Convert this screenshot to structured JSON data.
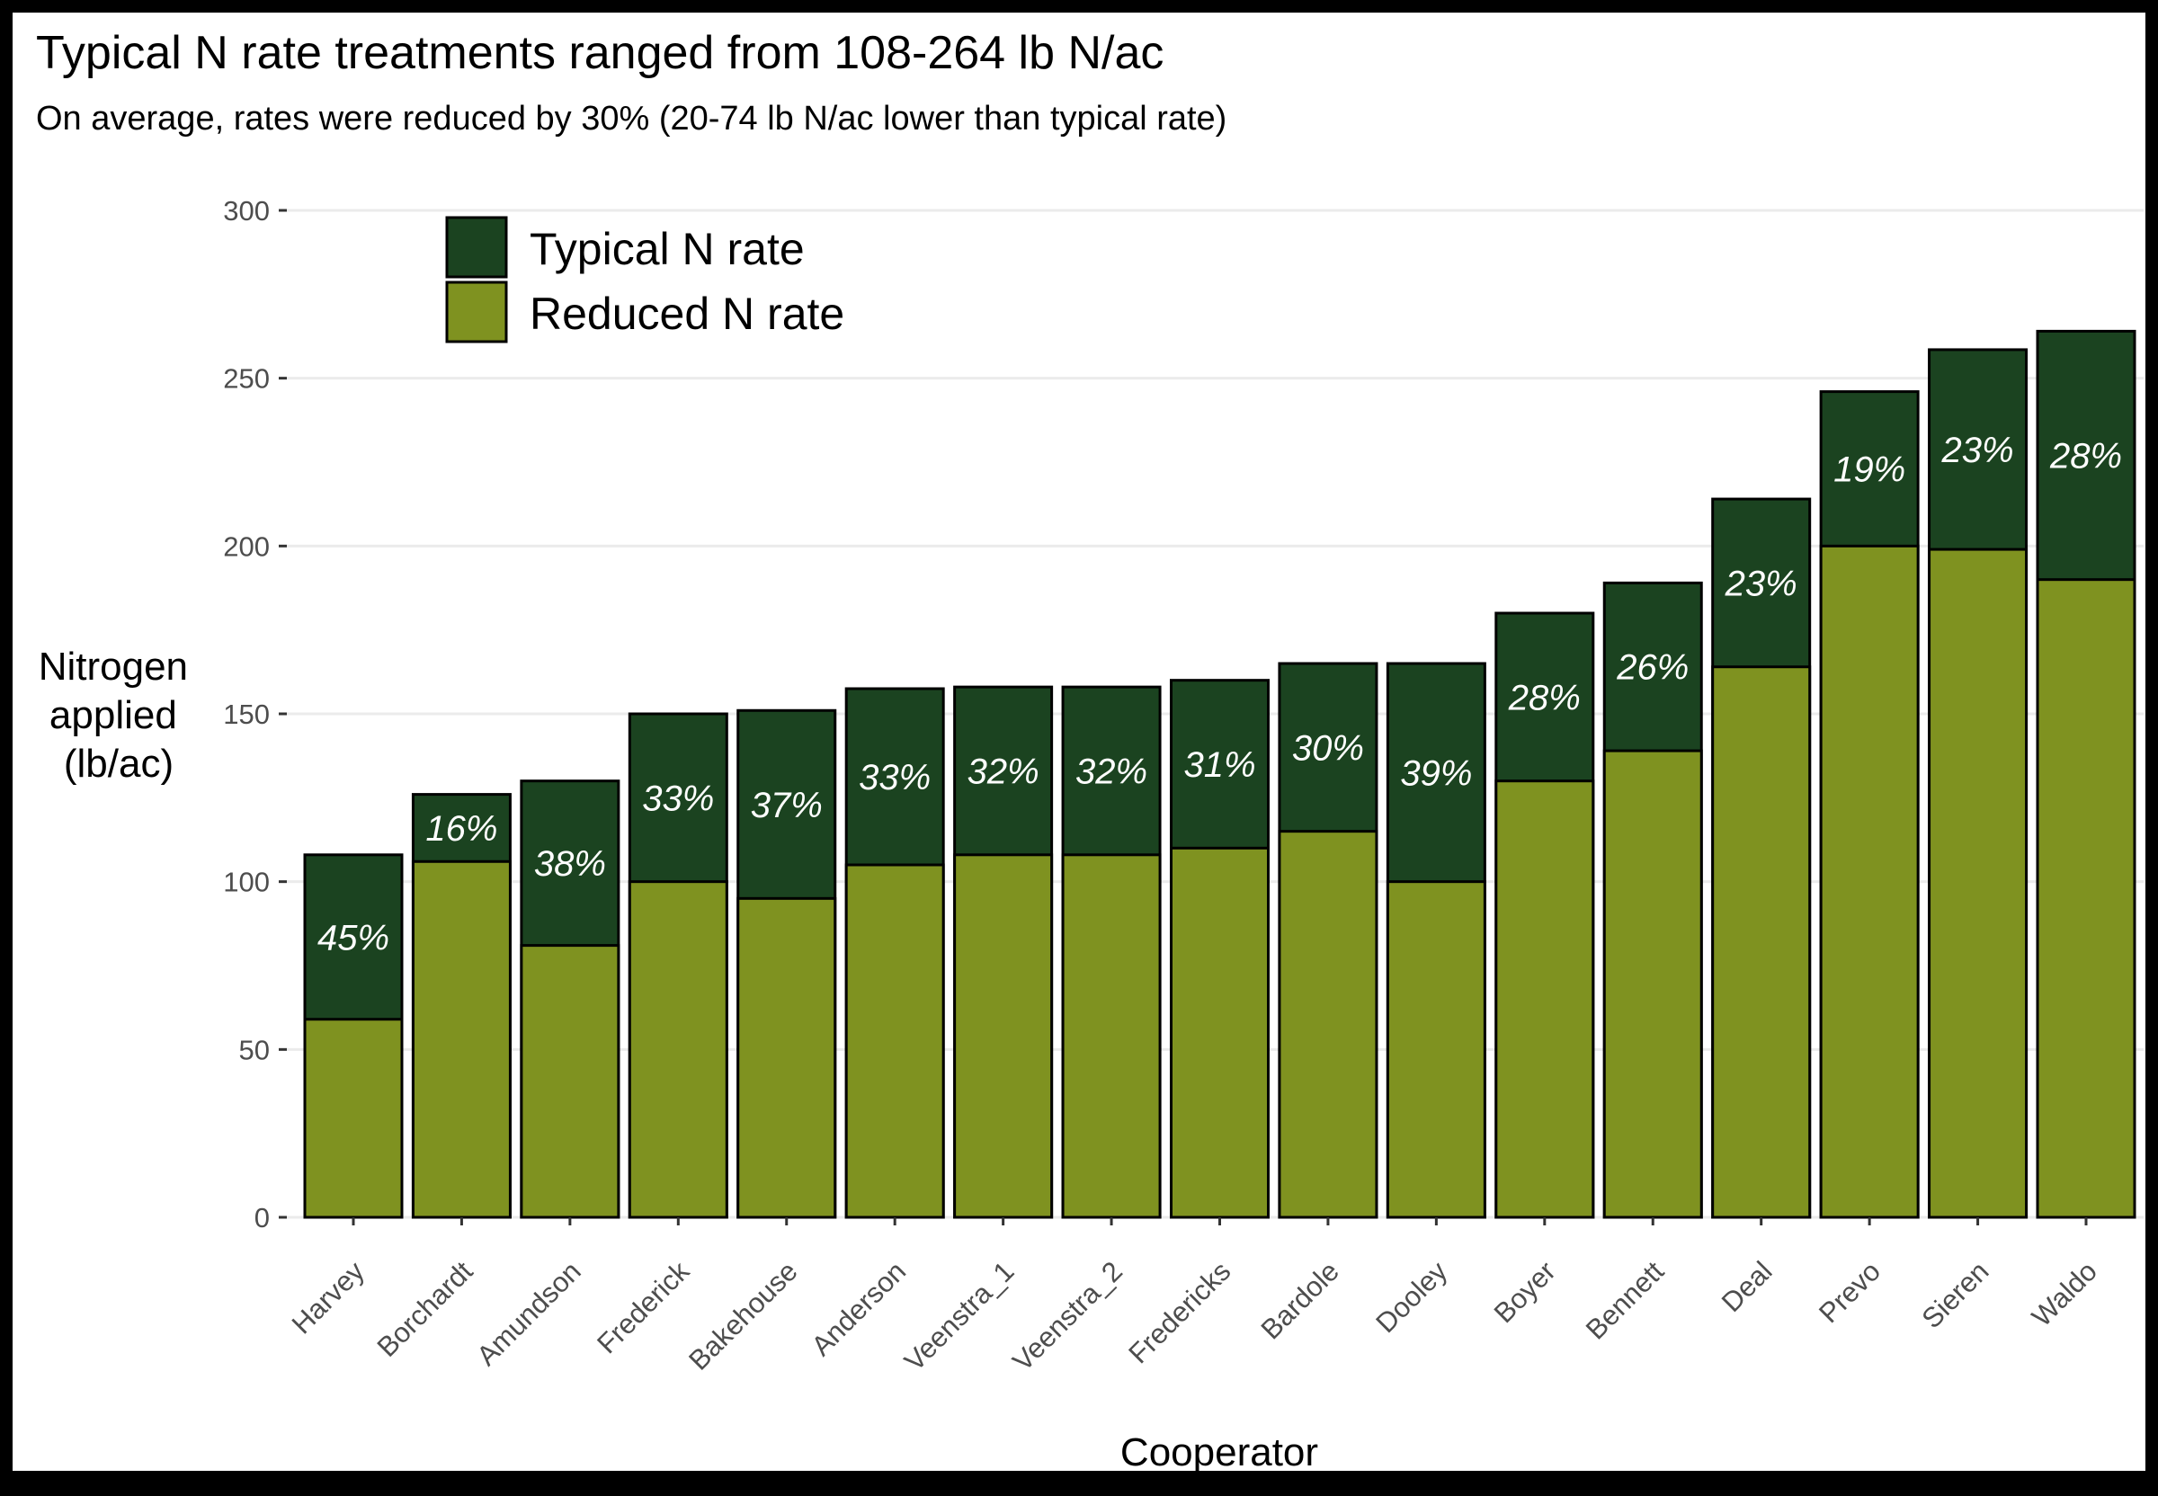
{
  "chart_data": {
    "type": "bar",
    "stacked": "overlay",
    "title": "Typical N rate treatments ranged from 108-264 lb N/ac",
    "subtitle": "On average, rates were reduced by 30% (20-74 lb N/ac lower than typical rate)",
    "xlabel": "Cooperator",
    "ylabel_lines": [
      "Nitrogen",
      "applied",
      "(lb/ac)"
    ],
    "ylim": [
      0,
      300
    ],
    "yticks": [
      0,
      50,
      100,
      150,
      200,
      250,
      300
    ],
    "grid": true,
    "legend_position": "top-left",
    "categories": [
      "Harvey",
      "Borchardt",
      "Amundson",
      "Frederick",
      "Bakehouse",
      "Anderson",
      "Veenstra_1",
      "Veenstra_2",
      "Fredericks",
      "Bardole",
      "Dooley",
      "Boyer",
      "Bennett",
      "Deal",
      "Prevo",
      "Sieren",
      "Waldo"
    ],
    "series": [
      {
        "name": "Typical N rate",
        "color": "#1b4320",
        "values": [
          108,
          126,
          130,
          150,
          151,
          157.5,
          158,
          158,
          160,
          165,
          165,
          180,
          189,
          214,
          246,
          258.5,
          264
        ]
      },
      {
        "name": "Reduced N rate",
        "color": "#7f9220",
        "values": [
          59,
          106,
          81,
          100,
          95,
          105,
          108,
          108,
          110,
          115,
          100,
          130,
          139,
          164,
          200,
          199,
          190
        ]
      }
    ],
    "bar_labels": [
      "45%",
      "16%",
      "38%",
      "33%",
      "37%",
      "33%",
      "32%",
      "32%",
      "31%",
      "30%",
      "39%",
      "28%",
      "26%",
      "23%",
      "19%",
      "23%",
      "28%"
    ]
  }
}
